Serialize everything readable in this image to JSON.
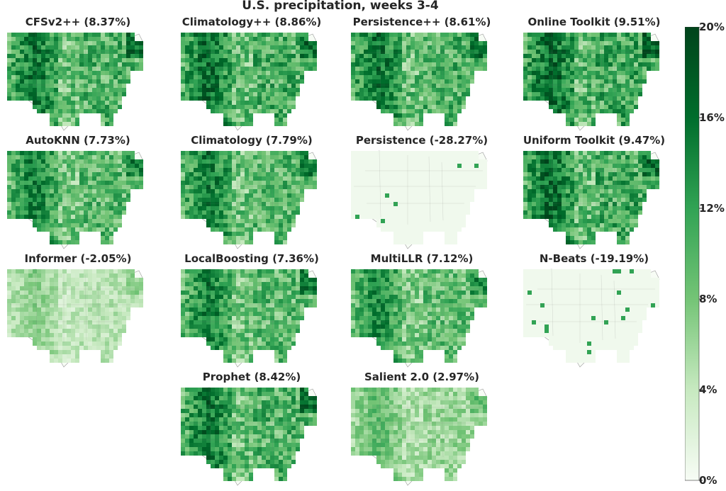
{
  "chart_data": {
    "type": "heatmap",
    "title": "U.S. precipitation,  weeks 3-4",
    "panels": [
      {
        "label": "CFSv2++ (8.37%)",
        "model": "CFSv2++",
        "skill_pct": 8.37,
        "intensity": 1.0
      },
      {
        "label": "Climatology++ (8.86%)",
        "model": "Climatology++",
        "skill_pct": 8.86,
        "intensity": 1.05
      },
      {
        "label": "Persistence++ (8.61%)",
        "model": "Persistence++",
        "skill_pct": 8.61,
        "intensity": 1.02
      },
      {
        "label": "Online Toolkit (9.51%)",
        "model": "Online Toolkit",
        "skill_pct": 9.51,
        "intensity": 1.08
      },
      {
        "label": "AutoKNN (7.73%)",
        "model": "AutoKNN",
        "skill_pct": 7.73,
        "intensity": 0.95
      },
      {
        "label": "Climatology (7.79%)",
        "model": "Climatology",
        "skill_pct": 7.79,
        "intensity": 0.97
      },
      {
        "label": "Persistence (-28.27%)",
        "model": "Persistence",
        "skill_pct": -28.27,
        "intensity": 0.05
      },
      {
        "label": "Uniform Toolkit (9.47%)",
        "model": "Uniform Toolkit",
        "skill_pct": 9.47,
        "intensity": 1.07
      },
      {
        "label": "Informer (-2.05%)",
        "model": "Informer",
        "skill_pct": -2.05,
        "intensity": 0.45
      },
      {
        "label": "LocalBoosting (7.36%)",
        "model": "LocalBoosting",
        "skill_pct": 7.36,
        "intensity": 0.94
      },
      {
        "label": "MultiLLR (7.12%)",
        "model": "MultiLLR",
        "skill_pct": 7.12,
        "intensity": 0.9
      },
      {
        "label": "N-Beats (-19.19%)",
        "model": "N-Beats",
        "skill_pct": -19.19,
        "intensity": 0.08
      },
      {
        "label": "Prophet (8.42%)",
        "model": "Prophet",
        "skill_pct": 8.42,
        "intensity": 1.0
      },
      {
        "label": "Salient 2.0 (2.97%)",
        "model": "Salient 2.0",
        "skill_pct": 2.97,
        "intensity": 0.6
      }
    ],
    "colorbar": {
      "ticks": [
        "0%",
        "4%",
        "8%",
        "12%",
        "16%",
        "20%"
      ],
      "min": 0,
      "max": 20,
      "colors": [
        "#f7fcf5",
        "#c7e9c0",
        "#74c476",
        "#31a354",
        "#006d2c",
        "#00441b"
      ]
    }
  }
}
